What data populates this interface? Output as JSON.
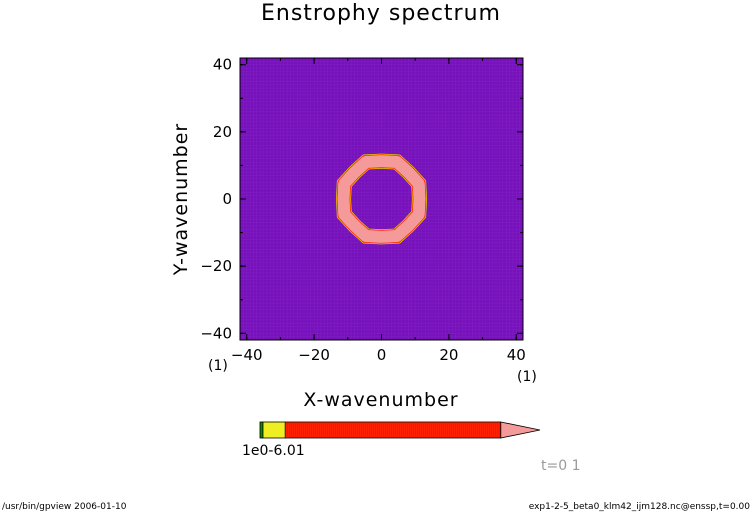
{
  "chart_data": {
    "type": "heatmap",
    "title": "Enstrophy spectrum",
    "xlabel": "X-wavenumber",
    "ylabel": "Y-wavenumber",
    "xunit": "(1)",
    "yunit": "(1)",
    "xlim": [
      -42,
      42
    ],
    "ylim": [
      -42,
      42
    ],
    "xticks": [
      -40,
      -20,
      0,
      20,
      40
    ],
    "yticks": [
      -40,
      -20,
      0,
      20,
      40
    ],
    "xtick_labels": [
      "−40",
      "−20",
      "0",
      "20",
      "40"
    ],
    "ytick_labels": [
      "−40",
      "−20",
      "0",
      "20",
      "40"
    ],
    "background_level_color": "#7711bb",
    "ring": {
      "center": [
        0,
        0
      ],
      "radius": 11.5,
      "width_k": 3.6,
      "ring_color": "#f49a9a",
      "inner_color": "#ff2200",
      "edge_color": "#ddcc00"
    },
    "colorbar": {
      "colors": [
        "#118800",
        "#eeee22",
        "#ff2200",
        "#f49a9a"
      ],
      "fractions": [
        0.012,
        0.09,
        0.87,
        0.14
      ],
      "tick_labels": [
        "1e-6",
        "0.01"
      ],
      "tick_overlap_label": "1e0-6.01"
    }
  },
  "annotations": {
    "time": "t=0 1",
    "footer_left": "/usr/bin/gpview  2006-01-10",
    "footer_right": "exp1-2-5_beta0_klm42_ijm128.nc@enssp,t=0.00"
  }
}
